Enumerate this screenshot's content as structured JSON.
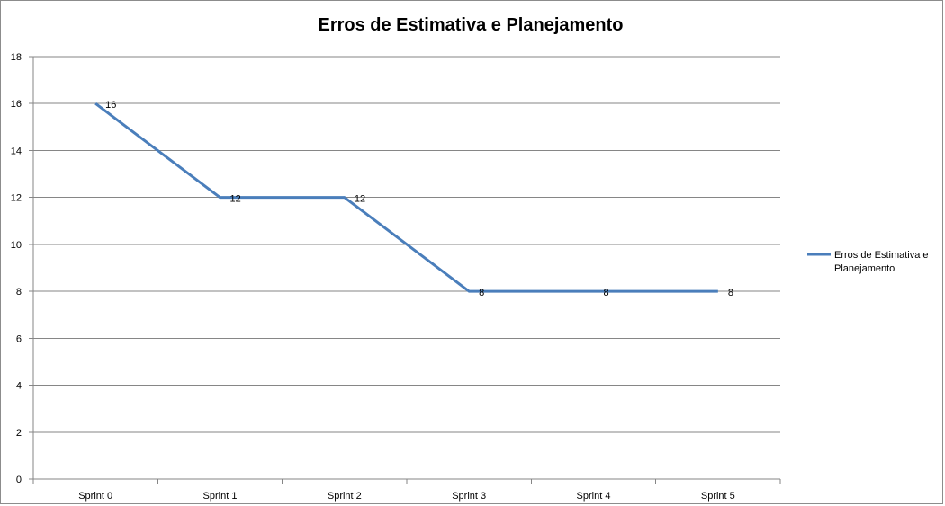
{
  "chart_data": {
    "type": "line",
    "title": "Erros de Estimativa e Planejamento",
    "xlabel": "",
    "ylabel": "",
    "categories": [
      "Sprint 0",
      "Sprint 1",
      "Sprint 2",
      "Sprint 3",
      "Sprint 4",
      "Sprint 5"
    ],
    "series": [
      {
        "name": "Erros de Estimativa  e Planejamento",
        "legend_lines": [
          "Erros de Estimativa  e",
          "Planejamento"
        ],
        "values": [
          16,
          12,
          12,
          8,
          8,
          8
        ],
        "color": "#4a7ebb"
      }
    ],
    "ylim": [
      0,
      18
    ],
    "yticks": [
      0,
      2,
      4,
      6,
      8,
      10,
      12,
      14,
      16,
      18
    ],
    "grid": true,
    "legend_position": "right",
    "data_labels": true
  }
}
